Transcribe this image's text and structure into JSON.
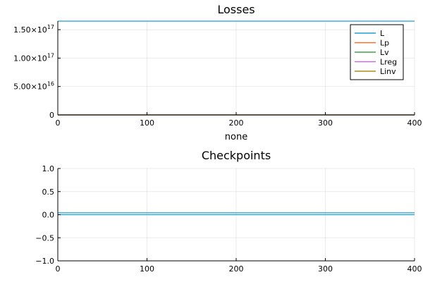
{
  "chart_data": [
    {
      "type": "line",
      "title": "Losses",
      "xlabel": "none",
      "ylabel": "",
      "xlim": [
        0,
        400
      ],
      "ylim": [
        0,
        1.65e+17
      ],
      "grid": true,
      "legend_position": "top-right",
      "x_ticks": [
        {
          "value": 0,
          "label": "0"
        },
        {
          "value": 100,
          "label": "100"
        },
        {
          "value": 200,
          "label": "200"
        },
        {
          "value": 300,
          "label": "300"
        },
        {
          "value": 400,
          "label": "400"
        }
      ],
      "y_ticks": [
        {
          "value": 0,
          "mantissa": "0",
          "exp": ""
        },
        {
          "value": 5e+16,
          "mantissa": "5.00×10",
          "exp": "16"
        },
        {
          "value": 1e+17,
          "mantissa": "1.00×10",
          "exp": "17"
        },
        {
          "value": 1.5e+17,
          "mantissa": "1.50×10",
          "exp": "17"
        }
      ],
      "series": [
        {
          "name": "L",
          "color": "#1f9fd9",
          "x": [
            0,
            400
          ],
          "y": [
            1.65e+17,
            1.65e+17
          ]
        },
        {
          "name": "Lp",
          "color": "#e5743a",
          "x": [
            0,
            400
          ],
          "y": [
            0,
            0
          ]
        },
        {
          "name": "Lv",
          "color": "#3da44d",
          "x": [
            0,
            400
          ],
          "y": [
            0,
            0
          ]
        },
        {
          "name": "Lreg",
          "color": "#c271d2",
          "x": [
            0,
            400
          ],
          "y": [
            0,
            0
          ]
        },
        {
          "name": "Linv",
          "color": "#ac8d18",
          "x": [
            0,
            400
          ],
          "y": [
            0,
            0
          ]
        }
      ]
    },
    {
      "type": "line",
      "title": "Checkpoints",
      "xlabel": "",
      "ylabel": "",
      "xlim": [
        0,
        400
      ],
      "ylim": [
        -1,
        1
      ],
      "grid": true,
      "legend_position": "none",
      "x_ticks": [
        {
          "value": 0,
          "label": "0"
        },
        {
          "value": 100,
          "label": "100"
        },
        {
          "value": 200,
          "label": "200"
        },
        {
          "value": 300,
          "label": "300"
        },
        {
          "value": 400,
          "label": "400"
        }
      ],
      "y_ticks": [
        {
          "value": -1,
          "mantissa": "−1.0",
          "exp": ""
        },
        {
          "value": -0.5,
          "mantissa": "−0.5",
          "exp": ""
        },
        {
          "value": 0,
          "mantissa": "0.0",
          "exp": ""
        },
        {
          "value": 0.5,
          "mantissa": "0.5",
          "exp": ""
        },
        {
          "value": 1,
          "mantissa": "1.0",
          "exp": ""
        }
      ],
      "series": [
        {
          "color": "#1f9fd9",
          "x": [
            0,
            400
          ],
          "y": [
            0,
            0
          ]
        },
        {
          "color": "#1f9fd9",
          "x": [
            0,
            400
          ],
          "y": [
            0.04,
            0.04
          ]
        }
      ]
    }
  ]
}
